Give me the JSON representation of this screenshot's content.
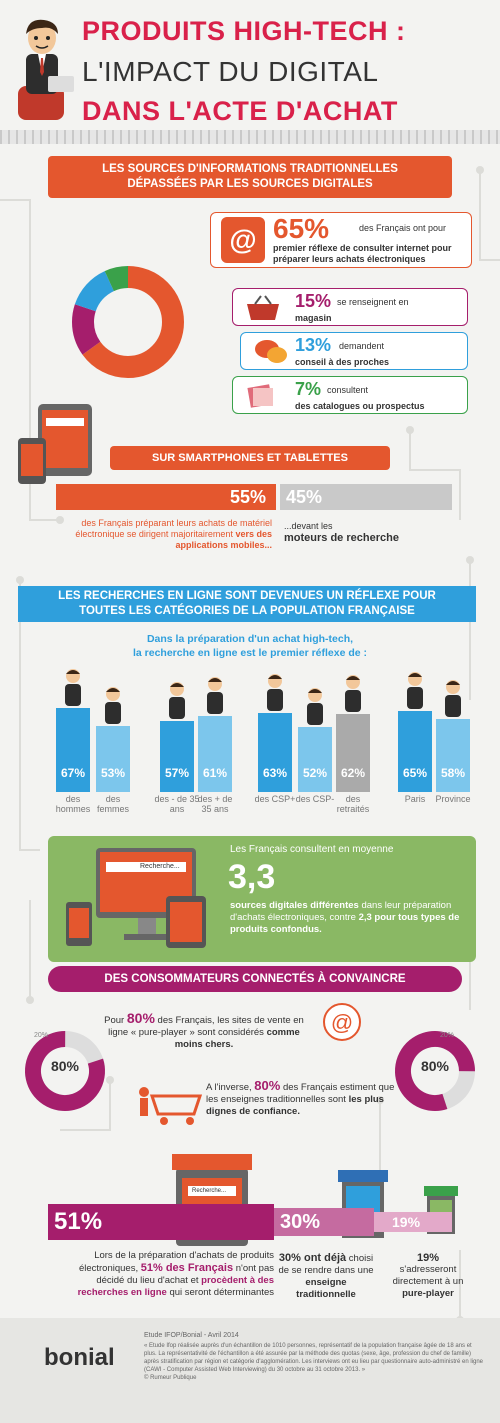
{
  "header": {
    "title_line1": "PRODUITS HIGH-TECH :",
    "title_line2": "L'IMPACT DU DIGITAL",
    "title_line3": "DANS L'ACTE D'ACHAT"
  },
  "section1": {
    "banner": "LES SOURCES D'INFORMATIONS TRADITIONNELLES DÉPASSÉES PAR LES SOURCES DIGITALES",
    "main_pct": "65%",
    "main_text_a": "des Français ont pour",
    "main_text_b": "premier réflexe de consulter internet pour préparer leurs achats électroniques",
    "items": [
      {
        "pct": "15%",
        "text_a": "se renseignent en",
        "text_b": "magasin",
        "color": "#a51e6c"
      },
      {
        "pct": "13%",
        "text_a": "demandent",
        "text_b": "conseil à des proches",
        "color": "#2f9fdc"
      },
      {
        "pct": "7%",
        "text_a": "consultent",
        "text_b": "des catalogues ou prospectus",
        "color": "#3aa14a"
      }
    ],
    "colors": {
      "orange": "#e4572e",
      "purple": "#a51e6c",
      "blue": "#2f9fdc",
      "green": "#3aa14a"
    }
  },
  "section2": {
    "banner": "SUR SMARTPHONES ET TABLETTES",
    "pct_apps": "55%",
    "pct_search": "45%",
    "text_apps_a": "des Français préparant leurs achats de matériel électronique se dirigent majoritairement",
    "text_apps_b": "vers des applications mobiles...",
    "text_search_a": "...devant les",
    "text_search_b": "moteurs de recherche"
  },
  "section3": {
    "banner": "LES RECHERCHES EN LIGNE SONT DEVENUES UN RÉFLEXE POUR TOUTES LES CATÉGORIES DE LA POPULATION FRANÇAISE",
    "subtitle_a": "Dans la préparation d'un achat high-tech,",
    "subtitle_b": "la recherche en ligne est le premier réflexe de :",
    "chart_data": {
      "type": "bar",
      "categories": [
        "des hommes",
        "des femmes",
        "des - de 35 ans",
        "des + de 35 ans",
        "des CSP+",
        "des CSP-",
        "des retraités",
        "Paris",
        "Province"
      ],
      "values": [
        67,
        53,
        57,
        61,
        63,
        52,
        62,
        65,
        58
      ],
      "value_labels": [
        "67%",
        "53%",
        "57%",
        "61%",
        "63%",
        "52%",
        "62%",
        "65%",
        "58%"
      ],
      "colors": [
        "#2f9fdc",
        "#7cc6ec",
        "#2f9fdc",
        "#7cc6ec",
        "#2f9fdc",
        "#7cc6ec",
        "#aaaaaa",
        "#2f9fdc",
        "#7cc6ec"
      ]
    }
  },
  "section4": {
    "intro": "Les Français consultent en moyenne",
    "number": "3,3",
    "text_a": "sources digitales différentes",
    "text_b": "dans leur préparation d'achats électroniques, contre",
    "text_c": "2,3 pour tous types de produits confondus.",
    "screen_label": "Recherche...",
    "screen_label_small": "Recherche...",
    "bg": "#8ab864"
  },
  "section5": {
    "banner": "DES CONSOMMATEURS CONNECTÉS À CONVAINCRE",
    "donut_left": {
      "pct": "80%",
      "small": "20%"
    },
    "donut_right": {
      "pct": "80%",
      "small": "20%"
    },
    "text1_a": "Pour",
    "text1_pct": "80%",
    "text1_b": "des Français, les sites de vente en ligne « pure-player » sont considérés",
    "text1_c": "comme moins chers.",
    "text2_a": "A l'inverse,",
    "text2_pct": "80%",
    "text2_b": "des Français estiment que les enseignes traditionnelles sont",
    "text2_c": "les plus dignes de confiance."
  },
  "section6": {
    "pct_main": "51%",
    "pct_mid": "30%",
    "pct_small": "19%",
    "shop_label": "Recherche...",
    "text_main_a": "Lors de la préparation d'achats de produits électroniques,",
    "text_main_b": "51% des Français",
    "text_main_c": "n'ont pas décidé du lieu d'achat et",
    "text_main_d": "procèdent à des recherches en ligne",
    "text_main_e": "qui seront déterminantes",
    "text_mid_a": "30% ont déjà",
    "text_mid_b": "choisi de se rendre dans une",
    "text_mid_c": "enseigne traditionnelle",
    "text_small_a": "19%",
    "text_small_b": "s'adresseront directement à un",
    "text_small_c": "pure-player"
  },
  "footer": {
    "logo": "bonial",
    "source_title": "Etude IFOP/Bonial - Avril 2014",
    "source_text": "« Etude Ifop réalisée auprès d'un échantillon de 1010 personnes, représentatif de la population française âgée de 18 ans et plus. La représentativité de l'échantillon a été assurée par la méthode des quotas (sexe, âge, profession du chef de famille) après stratification par région et catégorie d'agglomération. Les interviews ont eu lieu par questionnaire auto-administré en ligne (CAWI - Computer Assisted Web Interviewing) du 30 octobre au 31 octobre 2013. »",
    "credit": "© Rumeur Publique"
  }
}
